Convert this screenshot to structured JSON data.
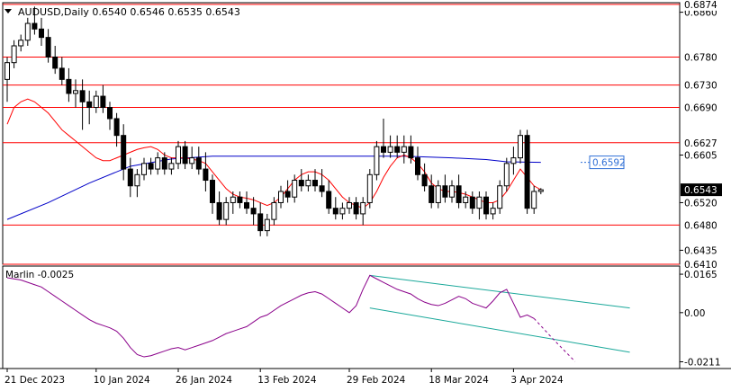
{
  "chart_data": {
    "type": "candlestick",
    "symbol_line": "AUDUSD,Daily  0.6540 0.6546 0.6535 0.6543",
    "main": {
      "ylim": [
        0.641,
        0.6877
      ],
      "price_ticks": [
        "0.6860",
        "0.6605",
        "0.6520",
        "0.6435"
      ],
      "tick_values": [
        0.686,
        0.6605,
        0.652,
        0.6435
      ],
      "levels": [
        {
          "label": "0.6874",
          "value": 0.6874
        },
        {
          "label": "0.6780",
          "value": 0.678
        },
        {
          "label": "0.6730",
          "value": 0.673
        },
        {
          "label": "0.6690",
          "value": 0.669
        },
        {
          "label": "0.6627",
          "value": 0.6627
        },
        {
          "label": "0.6480",
          "value": 0.648
        },
        {
          "label": "0.6410",
          "value": 0.641
        }
      ],
      "current_price": {
        "label": "0.6543",
        "value": 0.6543
      },
      "ma_label": {
        "label": "0.6592",
        "value": 0.6592
      },
      "candles": [
        [
          0.674,
          0.678,
          0.67,
          0.677
        ],
        [
          0.677,
          0.681,
          0.676,
          0.68
        ],
        [
          0.68,
          0.682,
          0.679,
          0.681
        ],
        [
          0.681,
          0.685,
          0.68,
          0.684
        ],
        [
          0.684,
          0.687,
          0.682,
          0.683
        ],
        [
          0.683,
          0.685,
          0.68,
          0.6815
        ],
        [
          0.6815,
          0.683,
          0.677,
          0.678
        ],
        [
          0.678,
          0.68,
          0.675,
          0.676
        ],
        [
          0.676,
          0.678,
          0.673,
          0.674
        ],
        [
          0.674,
          0.676,
          0.67,
          0.6715
        ],
        [
          0.6715,
          0.674,
          0.669,
          0.672
        ],
        [
          0.672,
          0.674,
          0.665,
          0.67
        ],
        [
          0.67,
          0.672,
          0.666,
          0.669
        ],
        [
          0.669,
          0.672,
          0.668,
          0.671
        ],
        [
          0.671,
          0.673,
          0.668,
          0.669
        ],
        [
          0.669,
          0.67,
          0.665,
          0.667
        ],
        [
          0.667,
          0.668,
          0.662,
          0.664
        ],
        [
          0.664,
          0.666,
          0.656,
          0.658
        ],
        [
          0.658,
          0.66,
          0.653,
          0.655
        ],
        [
          0.655,
          0.658,
          0.653,
          0.657
        ],
        [
          0.657,
          0.66,
          0.656,
          0.659
        ],
        [
          0.659,
          0.66,
          0.657,
          0.658
        ],
        [
          0.658,
          0.661,
          0.657,
          0.66
        ],
        [
          0.66,
          0.661,
          0.657,
          0.658
        ],
        [
          0.658,
          0.66,
          0.657,
          0.659
        ],
        [
          0.659,
          0.663,
          0.658,
          0.662
        ],
        [
          0.662,
          0.663,
          0.658,
          0.659
        ],
        [
          0.659,
          0.662,
          0.658,
          0.66
        ],
        [
          0.66,
          0.662,
          0.657,
          0.658
        ],
        [
          0.658,
          0.661,
          0.654,
          0.656
        ],
        [
          0.656,
          0.657,
          0.65,
          0.652
        ],
        [
          0.652,
          0.654,
          0.648,
          0.649
        ],
        [
          0.649,
          0.653,
          0.648,
          0.652
        ],
        [
          0.652,
          0.654,
          0.65,
          0.653
        ],
        [
          0.653,
          0.654,
          0.651,
          0.652
        ],
        [
          0.652,
          0.654,
          0.65,
          0.651
        ],
        [
          0.651,
          0.653,
          0.648,
          0.65
        ],
        [
          0.65,
          0.652,
          0.646,
          0.647
        ],
        [
          0.647,
          0.65,
          0.646,
          0.649
        ],
        [
          0.649,
          0.653,
          0.648,
          0.652
        ],
        [
          0.652,
          0.655,
          0.651,
          0.654
        ],
        [
          0.654,
          0.656,
          0.652,
          0.653
        ],
        [
          0.653,
          0.657,
          0.652,
          0.656
        ],
        [
          0.656,
          0.658,
          0.654,
          0.655
        ],
        [
          0.655,
          0.657,
          0.654,
          0.656
        ],
        [
          0.656,
          0.658,
          0.654,
          0.655
        ],
        [
          0.655,
          0.658,
          0.653,
          0.654
        ],
        [
          0.654,
          0.656,
          0.65,
          0.651
        ],
        [
          0.651,
          0.653,
          0.649,
          0.65
        ],
        [
          0.65,
          0.652,
          0.649,
          0.651
        ],
        [
          0.651,
          0.653,
          0.65,
          0.652
        ],
        [
          0.652,
          0.653,
          0.649,
          0.65
        ],
        [
          0.65,
          0.653,
          0.648,
          0.652
        ],
        [
          0.652,
          0.658,
          0.651,
          0.657
        ],
        [
          0.657,
          0.663,
          0.656,
          0.662
        ],
        [
          0.662,
          0.667,
          0.66,
          0.661
        ],
        [
          0.661,
          0.664,
          0.66,
          0.662
        ],
        [
          0.662,
          0.664,
          0.66,
          0.661
        ],
        [
          0.661,
          0.664,
          0.659,
          0.662
        ],
        [
          0.662,
          0.664,
          0.659,
          0.66
        ],
        [
          0.66,
          0.662,
          0.656,
          0.657
        ],
        [
          0.657,
          0.659,
          0.654,
          0.655
        ],
        [
          0.655,
          0.657,
          0.651,
          0.652
        ],
        [
          0.652,
          0.656,
          0.651,
          0.655
        ],
        [
          0.655,
          0.657,
          0.652,
          0.653
        ],
        [
          0.653,
          0.656,
          0.652,
          0.655
        ],
        [
          0.655,
          0.657,
          0.651,
          0.652
        ],
        [
          0.652,
          0.654,
          0.651,
          0.653
        ],
        [
          0.653,
          0.654,
          0.65,
          0.651
        ],
        [
          0.651,
          0.654,
          0.649,
          0.653
        ],
        [
          0.653,
          0.654,
          0.649,
          0.65
        ],
        [
          0.65,
          0.652,
          0.649,
          0.651
        ],
        [
          0.651,
          0.656,
          0.65,
          0.655
        ],
        [
          0.655,
          0.66,
          0.654,
          0.659
        ],
        [
          0.659,
          0.662,
          0.657,
          0.66
        ],
        [
          0.66,
          0.665,
          0.659,
          0.664
        ],
        [
          0.664,
          0.665,
          0.65,
          0.651
        ],
        [
          0.651,
          0.655,
          0.65,
          0.654
        ],
        [
          0.654,
          0.6546,
          0.6535,
          0.6543
        ]
      ],
      "ma_fast": [
        0.666,
        0.669,
        0.67,
        0.6705,
        0.67,
        0.669,
        0.668,
        0.6665,
        0.665,
        0.664,
        0.663,
        0.662,
        0.661,
        0.66,
        0.6595,
        0.6595,
        0.66,
        0.6605,
        0.661,
        0.6615,
        0.6618,
        0.662,
        0.6615,
        0.6605,
        0.66,
        0.66,
        0.66,
        0.6598,
        0.6595,
        0.659,
        0.6575,
        0.656,
        0.6545,
        0.6535,
        0.653,
        0.6528,
        0.6525,
        0.652,
        0.6515,
        0.652,
        0.653,
        0.6545,
        0.656,
        0.657,
        0.6575,
        0.6575,
        0.657,
        0.656,
        0.6545,
        0.653,
        0.652,
        0.6515,
        0.651,
        0.652,
        0.654,
        0.6565,
        0.6585,
        0.66,
        0.6605,
        0.66,
        0.659,
        0.6575,
        0.6555,
        0.6545,
        0.654,
        0.654,
        0.6538,
        0.6535,
        0.653,
        0.6525,
        0.652,
        0.652,
        0.6525,
        0.654,
        0.656,
        0.658,
        0.6565,
        0.655,
        0.6543
      ],
      "ma_slow_points": [
        [
          0,
          0.649
        ],
        [
          6,
          0.652
        ],
        [
          12,
          0.6555
        ],
        [
          18,
          0.6585
        ],
        [
          24,
          0.6598
        ],
        [
          30,
          0.6603
        ],
        [
          40,
          0.6603
        ],
        [
          50,
          0.6603
        ],
        [
          58,
          0.6603
        ],
        [
          65,
          0.66
        ],
        [
          70,
          0.6597
        ],
        [
          73,
          0.6593
        ],
        [
          78,
          0.6592
        ]
      ]
    },
    "oscillator": {
      "name": "Marlin",
      "value_label": "-0.0025",
      "ylim": [
        -0.024,
        0.02
      ],
      "ticks": [
        "0.0165",
        "0.00",
        "-0.0211"
      ],
      "tick_values": [
        0.0165,
        0.0,
        -0.0211
      ],
      "values": [
        0.015,
        0.0145,
        0.014,
        0.013,
        0.012,
        0.011,
        0.009,
        0.007,
        0.005,
        0.003,
        0.001,
        -0.001,
        -0.003,
        -0.0045,
        -0.0055,
        -0.0065,
        -0.008,
        -0.011,
        -0.015,
        -0.018,
        -0.019,
        -0.0185,
        -0.0175,
        -0.0165,
        -0.0155,
        -0.015,
        -0.016,
        -0.015,
        -0.014,
        -0.013,
        -0.012,
        -0.0105,
        -0.009,
        -0.008,
        -0.007,
        -0.006,
        -0.004,
        -0.002,
        -0.001,
        0.001,
        0.003,
        0.0045,
        0.006,
        0.0075,
        0.0085,
        0.009,
        0.008,
        0.006,
        0.004,
        0.002,
        0.0,
        0.003,
        0.01,
        0.016,
        0.0145,
        0.013,
        0.0115,
        0.01,
        0.009,
        0.008,
        0.006,
        0.0045,
        0.0035,
        0.003,
        0.004,
        0.0055,
        0.007,
        0.006,
        0.004,
        0.003,
        0.002,
        0.005,
        0.0085,
        0.01,
        0.004,
        -0.002,
        -0.001,
        -0.0025
      ],
      "forecast": [
        [
          77,
          -0.0025
        ],
        [
          80,
          -0.012
        ],
        [
          83,
          -0.021
        ]
      ],
      "channel_upper": [
        [
          53,
          0.016
        ],
        [
          91,
          0.002
        ]
      ],
      "channel_lower": [
        [
          53,
          0.002
        ],
        [
          91,
          -0.017
        ]
      ]
    },
    "x_labels": [
      {
        "label": "21 Dec 2023",
        "index": 0
      },
      {
        "label": "10 Jan 2024",
        "index": 13
      },
      {
        "label": "26 Jan 2024",
        "index": 25
      },
      {
        "label": "13 Feb 2024",
        "index": 37
      },
      {
        "label": "29 Feb 2024",
        "index": 50
      },
      {
        "label": "18 Mar 2024",
        "index": 62
      },
      {
        "label": "3 Apr 2024",
        "index": 74
      }
    ],
    "colors": {
      "level": "#ff0000",
      "ma_fast": "#ff0000",
      "ma_slow": "#0000c8",
      "oscillator": "#8a008a",
      "channel": "#1aa89a",
      "ma_label": "#2f6fd6"
    }
  }
}
